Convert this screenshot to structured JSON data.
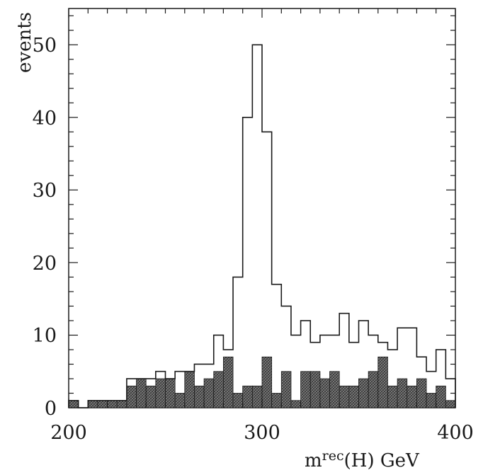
{
  "chart_data": {
    "type": "bar",
    "subtype": "histogram",
    "xlabel_base": "m",
    "xlabel_sup": "rec",
    "xlabel_rest": "(H)  GeV",
    "ylabel": "events",
    "xlim": [
      200,
      400
    ],
    "ylim": [
      0,
      55
    ],
    "xticks": [
      "200",
      "300",
      "400"
    ],
    "yticks": [
      "0",
      "10",
      "20",
      "30",
      "40",
      "50"
    ],
    "bin_width": 5,
    "bin_edges_start": 200,
    "series": [
      {
        "style": "open-outline",
        "values": [
          1,
          0,
          1,
          1,
          1,
          1,
          4,
          4,
          4,
          5,
          4,
          5,
          5,
          6,
          6,
          10,
          8,
          18,
          40,
          50,
          38,
          17,
          14,
          10,
          12,
          9,
          10,
          10,
          13,
          9,
          12,
          10,
          9,
          8,
          11,
          11,
          7,
          5,
          8,
          4
        ]
      },
      {
        "style": "hatched-filled",
        "values": [
          1,
          0,
          1,
          1,
          1,
          1,
          3,
          4,
          3,
          4,
          4,
          2,
          5,
          3,
          4,
          5,
          7,
          2,
          3,
          3,
          7,
          2,
          5,
          1,
          5,
          5,
          4,
          5,
          3,
          3,
          4,
          5,
          7,
          3,
          4,
          3,
          4,
          2,
          3,
          1
        ]
      }
    ]
  }
}
